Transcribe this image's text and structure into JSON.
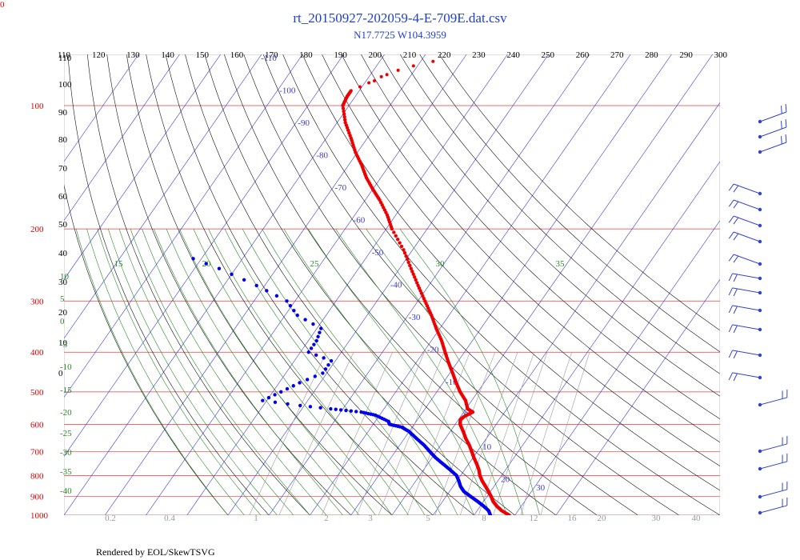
{
  "corner_label": "0",
  "footer": "Rendered by EOL/SkewTSVG",
  "colors": {
    "isobar": "#e23c3c",
    "isotherm": "#3a3ad6",
    "dry_adiabat": "#111111",
    "moist_adiabat": "#2a8a2a",
    "mixing_ratio": "#9a9a9a",
    "temperature": "#ee0000",
    "dewpoint": "#0000ee",
    "wind": "#3344cc"
  },
  "chart_data": {
    "type": "scatter",
    "subtype": "skew-t log-p diagram",
    "title": "rt_20150927-202059-4-E-709E.dat.csv",
    "subtitle": "N17.7725 W104.3959",
    "top_tick_labels": [
      "110",
      "120",
      "130",
      "140",
      "150",
      "160",
      "170",
      "180",
      "190",
      "200",
      "210",
      "220",
      "230",
      "240",
      "250",
      "260",
      "270",
      "280",
      "290",
      "300"
    ],
    "pressure_labels": [
      "100",
      "200",
      "300",
      "400",
      "500",
      "600",
      "700",
      "800",
      "900",
      "1000"
    ],
    "height_labels": [
      "110",
      "100",
      "90",
      "80",
      "70",
      "60",
      "50",
      "40",
      "30",
      "20",
      "10",
      "0"
    ],
    "isotherm_labels": [
      "-110",
      "-100",
      "-90",
      "-80",
      "-70",
      "-60",
      "-50",
      "-40",
      "-30",
      "-20",
      "-10",
      "0",
      "10",
      "20",
      "30"
    ],
    "moist_labels_top": [
      "15",
      "20",
      "25",
      "30",
      "35"
    ],
    "moist_labels_left": [
      "10",
      "5",
      "0",
      "-5",
      "-10",
      "-15",
      "-20",
      "-25",
      "-30",
      "-35",
      "-40"
    ],
    "mixing_ratio_labels": [
      "0.2",
      "0.4",
      "1",
      "2",
      "3",
      "5",
      "8",
      "12",
      "16",
      "20",
      "30",
      "40"
    ],
    "ylim_hPa": [
      1000,
      75
    ],
    "xlim_degC_at_1000hPa": [
      -40,
      40
    ],
    "temperature": {
      "pressure": [
        1000,
        975,
        950,
        925,
        900,
        875,
        850,
        825,
        800,
        775,
        750,
        725,
        700,
        675,
        650,
        625,
        600,
        585,
        575,
        560,
        550,
        525,
        500,
        475,
        450,
        425,
        400,
        375,
        350,
        325,
        300,
        275,
        250,
        225,
        200,
        185,
        170,
        160,
        150,
        140,
        130,
        120,
        110,
        100,
        95,
        92
      ],
      "temp": [
        28.6,
        26,
        24,
        22.3,
        21,
        19.5,
        17.9,
        16.2,
        14.7,
        13.5,
        12,
        10.3,
        8.7,
        7,
        5,
        3.2,
        1.2,
        0.5,
        0.8,
        2.2,
        0.4,
        -1.5,
        -4.3,
        -6.8,
        -9.3,
        -12,
        -14.7,
        -17.5,
        -20.9,
        -24.3,
        -28.3,
        -32.6,
        -37.2,
        -42.2,
        -48.6,
        -52.1,
        -56.5,
        -60,
        -63.5,
        -66.7,
        -70.5,
        -74,
        -78,
        -81.5,
        -82,
        -82
      ]
    },
    "temperature_upper": {
      "pressure": [
        92,
        90,
        88,
        87,
        85,
        84,
        82,
        80,
        78
      ],
      "temp": [
        -82,
        -80.5,
        -79,
        -78,
        -77,
        -76,
        -74,
        -71,
        -67
      ]
    },
    "dewpoint": {
      "pressure": [
        1000,
        975,
        950,
        925,
        900,
        875,
        850,
        825,
        800,
        775,
        750,
        725,
        700,
        675,
        650,
        625,
        610,
        600,
        590,
        570,
        560,
        550,
        540,
        525,
        500,
        475,
        450,
        420,
        400,
        375,
        350,
        325,
        300,
        275,
        250,
        230
      ],
      "dewp": [
        24,
        22.8,
        20.8,
        18.5,
        16,
        13.5,
        11.8,
        10.5,
        9,
        6.5,
        3.8,
        1,
        -1.5,
        -4,
        -7,
        -10,
        -12.5,
        -16,
        -16.8,
        -21,
        -25,
        -33,
        -41,
        -51,
        -48,
        -45,
        -41,
        -41,
        -48,
        -48,
        -49,
        -57,
        -62,
        -72,
        -84,
        -96
      ]
    }
  }
}
